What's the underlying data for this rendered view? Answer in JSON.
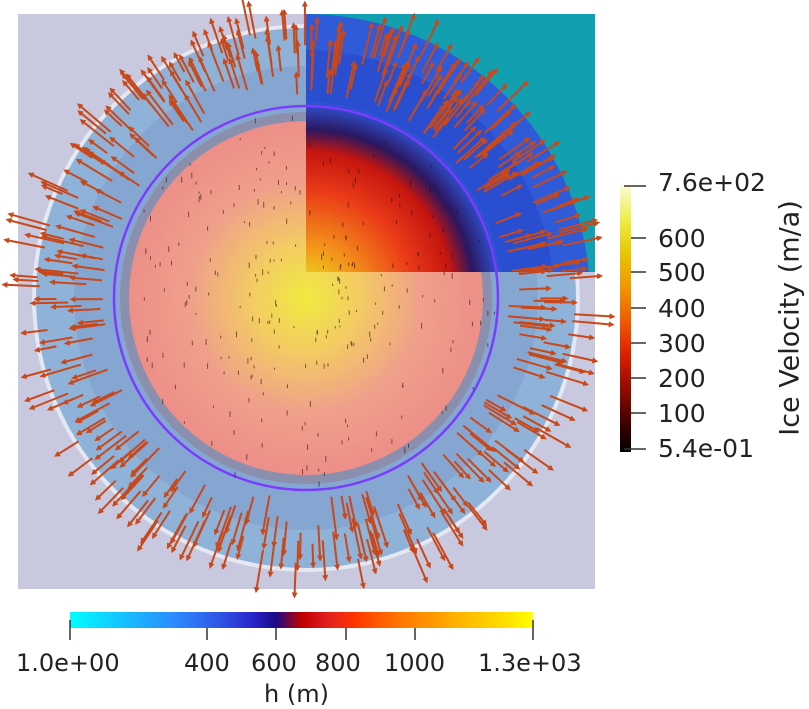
{
  "viewer": {
    "background": "#ffffff",
    "domain_color": "#c8c8de",
    "quadrant_color": "#12a0b0",
    "grounding_line_color": "#7a3cff",
    "arrow_color": "#c8481a"
  },
  "velocity_colorbar": {
    "title": "Ice Velocity (m/a)",
    "range_labels": {
      "max": "7.6e+02",
      "min": "5.4e-01"
    },
    "tick_labels": [
      "600",
      "500",
      "400",
      "300",
      "200",
      "100"
    ],
    "colormap": [
      "#000000",
      "#4a0000",
      "#9a0c00",
      "#e02200",
      "#f06000",
      "#f09a00",
      "#e8c800",
      "#eef04a",
      "#fafad8"
    ]
  },
  "thickness_colorbar": {
    "title": "h (m)",
    "range_labels": {
      "min": "1.0e+00",
      "max": "1.3e+03"
    },
    "tick_labels": [
      "400",
      "600",
      "800",
      "1000"
    ],
    "colormap": [
      "#00ffff",
      "#0ae0ff",
      "#14c4ff",
      "#1ea8ff",
      "#2d8cff",
      "#2f6ff2",
      "#2e4fe0",
      "#2a2acc",
      "#1a0a8a",
      "#c00000",
      "#e02020",
      "#ff3300",
      "#ff5a00",
      "#ff7a00",
      "#ff9500",
      "#ffb000",
      "#ffc800",
      "#ffe000",
      "#ffff00"
    ]
  }
}
